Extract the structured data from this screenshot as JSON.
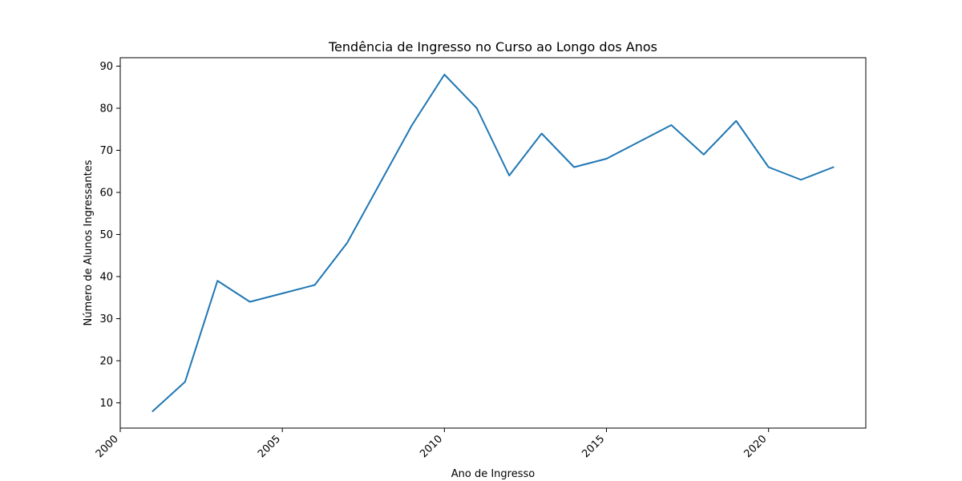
{
  "chart_data": {
    "type": "line",
    "title": "Tendência de Ingresso no Curso ao Longo dos Anos",
    "xlabel": "Ano de Ingresso",
    "ylabel": "Número de Alunos Ingressantes",
    "x": [
      2001,
      2002,
      2003,
      2004,
      2005,
      2006,
      2007,
      2008,
      2009,
      2010,
      2011,
      2012,
      2013,
      2014,
      2015,
      2016,
      2017,
      2018,
      2019,
      2020,
      2021,
      2022
    ],
    "series": [
      {
        "values": [
          8,
          15,
          39,
          34,
          36,
          38,
          48,
          62,
          76,
          88,
          80,
          64,
          74,
          66,
          68,
          72,
          76,
          69,
          77,
          66,
          63,
          66
        ]
      }
    ],
    "xlim": [
      2000,
      2023
    ],
    "ylim": [
      4,
      92
    ],
    "xticks": [
      2000,
      2005,
      2010,
      2015,
      2020
    ],
    "yticks": [
      10,
      20,
      30,
      40,
      50,
      60,
      70,
      80,
      90
    ],
    "xtick_rotation": 45,
    "grid": false,
    "line_color": "#1f77b4"
  }
}
